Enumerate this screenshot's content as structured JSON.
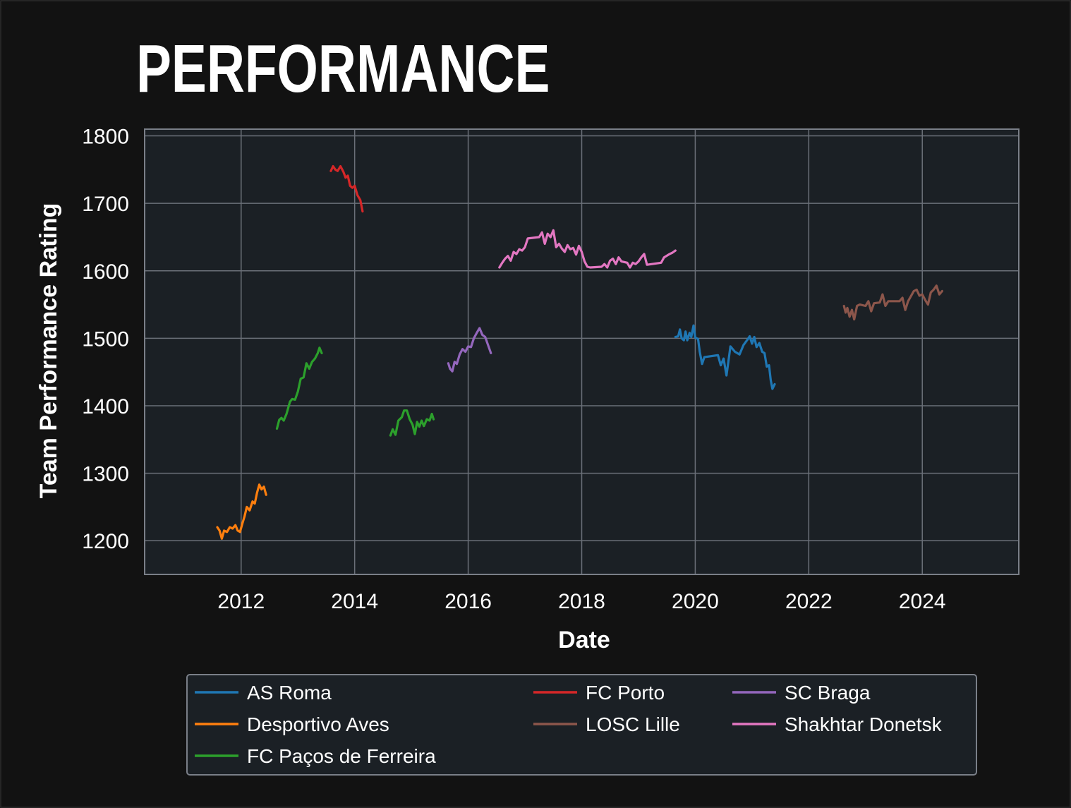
{
  "chart_data": {
    "type": "line",
    "title": "PERFORMANCE",
    "xlabel": "Date",
    "ylabel": "Team Performance Rating",
    "xlim": [
      2010.3,
      2025.7
    ],
    "ylim": [
      1150,
      1810
    ],
    "x_ticks": [
      2012,
      2014,
      2016,
      2018,
      2020,
      2022,
      2024
    ],
    "x_tick_labels": [
      "2012",
      "2014",
      "2016",
      "2018",
      "2020",
      "2022",
      "2024"
    ],
    "y_ticks": [
      1200,
      1300,
      1400,
      1500,
      1600,
      1700,
      1800
    ],
    "y_tick_labels": [
      "1200",
      "1300",
      "1400",
      "1500",
      "1600",
      "1700",
      "1800"
    ],
    "grid": true,
    "legend_position": "bottom",
    "colors": {
      "background": "#121212",
      "plot_background": "#1b2025",
      "grid": "#6b7079",
      "text": "#ffffff"
    },
    "series": [
      {
        "name": "AS Roma",
        "color": "#1f77b4",
        "points": [
          [
            2019.65,
            1502
          ],
          [
            2019.7,
            1503
          ],
          [
            2019.73,
            1513
          ],
          [
            2019.76,
            1500
          ],
          [
            2019.8,
            1497
          ],
          [
            2019.83,
            1510
          ],
          [
            2019.86,
            1497
          ],
          [
            2019.9,
            1508
          ],
          [
            2019.93,
            1502
          ],
          [
            2019.97,
            1519
          ],
          [
            2020.0,
            1501
          ],
          [
            2020.05,
            1499
          ],
          [
            2020.08,
            1480
          ],
          [
            2020.12,
            1462
          ],
          [
            2020.16,
            1472
          ],
          [
            2020.4,
            1475
          ],
          [
            2020.45,
            1460
          ],
          [
            2020.5,
            1470
          ],
          [
            2020.55,
            1445
          ],
          [
            2020.62,
            1488
          ],
          [
            2020.7,
            1480
          ],
          [
            2020.78,
            1476
          ],
          [
            2020.85,
            1490
          ],
          [
            2020.92,
            1498
          ],
          [
            2020.96,
            1503
          ],
          [
            2021.0,
            1492
          ],
          [
            2021.04,
            1502
          ],
          [
            2021.08,
            1487
          ],
          [
            2021.13,
            1493
          ],
          [
            2021.18,
            1480
          ],
          [
            2021.22,
            1478
          ],
          [
            2021.26,
            1458
          ],
          [
            2021.3,
            1460
          ],
          [
            2021.33,
            1438
          ],
          [
            2021.36,
            1425
          ],
          [
            2021.4,
            1432
          ]
        ]
      },
      {
        "name": "Desportivo Aves",
        "color": "#ff7f0e",
        "points": [
          [
            2011.58,
            1220
          ],
          [
            2011.62,
            1215
          ],
          [
            2011.66,
            1203
          ],
          [
            2011.7,
            1215
          ],
          [
            2011.75,
            1213
          ],
          [
            2011.8,
            1220
          ],
          [
            2011.85,
            1218
          ],
          [
            2011.9,
            1223
          ],
          [
            2011.94,
            1215
          ],
          [
            2011.98,
            1213
          ],
          [
            2012.02,
            1225
          ],
          [
            2012.06,
            1236
          ],
          [
            2012.1,
            1250
          ],
          [
            2012.15,
            1245
          ],
          [
            2012.2,
            1258
          ],
          [
            2012.24,
            1255
          ],
          [
            2012.28,
            1271
          ],
          [
            2012.32,
            1283
          ],
          [
            2012.36,
            1276
          ],
          [
            2012.4,
            1280
          ],
          [
            2012.44,
            1268
          ]
        ]
      },
      {
        "name": "FC Paços de Ferreira",
        "color": "#2ca02c",
        "points": [
          [
            2012.63,
            1366
          ],
          [
            2012.67,
            1379
          ],
          [
            2012.71,
            1382
          ],
          [
            2012.75,
            1378
          ],
          [
            2012.8,
            1388
          ],
          [
            2012.86,
            1406
          ],
          [
            2012.9,
            1410
          ],
          [
            2012.95,
            1409
          ],
          [
            2013.0,
            1421
          ],
          [
            2013.05,
            1440
          ],
          [
            2013.1,
            1442
          ],
          [
            2013.15,
            1463
          ],
          [
            2013.2,
            1455
          ],
          [
            2013.25,
            1465
          ],
          [
            2013.3,
            1470
          ],
          [
            2013.35,
            1478
          ],
          [
            2013.38,
            1486
          ],
          [
            2013.42,
            1478
          ]
        ],
        "segments": [
          [
            [
              2012.63,
              1366
            ],
            [
              2012.67,
              1379
            ],
            [
              2012.71,
              1382
            ],
            [
              2012.75,
              1378
            ],
            [
              2012.8,
              1388
            ],
            [
              2012.86,
              1406
            ],
            [
              2012.9,
              1410
            ],
            [
              2012.95,
              1409
            ],
            [
              2013.0,
              1421
            ],
            [
              2013.05,
              1440
            ],
            [
              2013.1,
              1442
            ],
            [
              2013.15,
              1463
            ],
            [
              2013.2,
              1455
            ],
            [
              2013.25,
              1465
            ],
            [
              2013.3,
              1470
            ],
            [
              2013.35,
              1478
            ],
            [
              2013.38,
              1486
            ],
            [
              2013.42,
              1478
            ]
          ],
          [
            [
              2014.63,
              1356
            ],
            [
              2014.67,
              1365
            ],
            [
              2014.72,
              1357
            ],
            [
              2014.77,
              1378
            ],
            [
              2014.83,
              1383
            ],
            [
              2014.87,
              1393
            ],
            [
              2014.92,
              1393
            ],
            [
              2014.97,
              1380
            ],
            [
              2015.02,
              1372
            ],
            [
              2015.06,
              1358
            ],
            [
              2015.1,
              1376
            ],
            [
              2015.14,
              1369
            ],
            [
              2015.18,
              1378
            ],
            [
              2015.22,
              1370
            ],
            [
              2015.27,
              1380
            ],
            [
              2015.32,
              1378
            ],
            [
              2015.36,
              1388
            ],
            [
              2015.39,
              1380
            ]
          ]
        ]
      },
      {
        "name": "FC Porto",
        "color": "#d62728",
        "points": [
          [
            2013.58,
            1748
          ],
          [
            2013.62,
            1755
          ],
          [
            2013.66,
            1750
          ],
          [
            2013.7,
            1748
          ],
          [
            2013.75,
            1755
          ],
          [
            2013.8,
            1747
          ],
          [
            2013.84,
            1738
          ],
          [
            2013.88,
            1741
          ],
          [
            2013.92,
            1726
          ],
          [
            2013.96,
            1723
          ],
          [
            2014.0,
            1726
          ],
          [
            2014.05,
            1712
          ],
          [
            2014.1,
            1705
          ],
          [
            2014.14,
            1688
          ]
        ]
      },
      {
        "name": "LOSC Lille",
        "color": "#8c564b",
        "points": [
          [
            2022.62,
            1548
          ],
          [
            2022.65,
            1538
          ],
          [
            2022.68,
            1545
          ],
          [
            2022.72,
            1532
          ],
          [
            2022.76,
            1542
          ],
          [
            2022.8,
            1528
          ],
          [
            2022.85,
            1548
          ],
          [
            2022.9,
            1550
          ],
          [
            2023.0,
            1548
          ],
          [
            2023.05,
            1555
          ],
          [
            2023.1,
            1540
          ],
          [
            2023.15,
            1552
          ],
          [
            2023.25,
            1553
          ],
          [
            2023.3,
            1565
          ],
          [
            2023.35,
            1548
          ],
          [
            2023.4,
            1555
          ],
          [
            2023.5,
            1555
          ],
          [
            2023.6,
            1555
          ],
          [
            2023.65,
            1560
          ],
          [
            2023.7,
            1542
          ],
          [
            2023.75,
            1555
          ],
          [
            2023.85,
            1570
          ],
          [
            2023.9,
            1572
          ],
          [
            2023.95,
            1563
          ],
          [
            2024.0,
            1565
          ],
          [
            2024.05,
            1557
          ],
          [
            2024.1,
            1550
          ],
          [
            2024.15,
            1568
          ],
          [
            2024.2,
            1572
          ],
          [
            2024.25,
            1578
          ],
          [
            2024.3,
            1565
          ],
          [
            2024.35,
            1570
          ]
        ]
      },
      {
        "name": "SC Braga",
        "color": "#9467bd",
        "points": [
          [
            2015.65,
            1463
          ],
          [
            2015.68,
            1455
          ],
          [
            2015.72,
            1451
          ],
          [
            2015.76,
            1465
          ],
          [
            2015.8,
            1462
          ],
          [
            2015.85,
            1476
          ],
          [
            2015.9,
            1484
          ],
          [
            2015.95,
            1480
          ],
          [
            2016.0,
            1488
          ],
          [
            2016.05,
            1487
          ],
          [
            2016.1,
            1500
          ],
          [
            2016.15,
            1508
          ],
          [
            2016.2,
            1515
          ],
          [
            2016.25,
            1505
          ],
          [
            2016.3,
            1502
          ],
          [
            2016.35,
            1490
          ],
          [
            2016.4,
            1478
          ]
        ]
      },
      {
        "name": "Shakhtar Donetsk",
        "color": "#e377c2",
        "points": [
          [
            2016.55,
            1605
          ],
          [
            2016.6,
            1612
          ],
          [
            2016.65,
            1618
          ],
          [
            2016.7,
            1622
          ],
          [
            2016.75,
            1615
          ],
          [
            2016.8,
            1628
          ],
          [
            2016.85,
            1625
          ],
          [
            2016.9,
            1632
          ],
          [
            2016.95,
            1630
          ],
          [
            2017.0,
            1635
          ],
          [
            2017.05,
            1648
          ],
          [
            2017.25,
            1650
          ],
          [
            2017.3,
            1657
          ],
          [
            2017.35,
            1640
          ],
          [
            2017.4,
            1655
          ],
          [
            2017.45,
            1650
          ],
          [
            2017.5,
            1660
          ],
          [
            2017.55,
            1635
          ],
          [
            2017.6,
            1640
          ],
          [
            2017.65,
            1633
          ],
          [
            2017.7,
            1628
          ],
          [
            2017.75,
            1638
          ],
          [
            2017.8,
            1632
          ],
          [
            2017.85,
            1634
          ],
          [
            2017.9,
            1624
          ],
          [
            2017.95,
            1637
          ],
          [
            2018.0,
            1628
          ],
          [
            2018.05,
            1614
          ],
          [
            2018.1,
            1606
          ],
          [
            2018.15,
            1605
          ],
          [
            2018.35,
            1606
          ],
          [
            2018.4,
            1610
          ],
          [
            2018.45,
            1605
          ],
          [
            2018.5,
            1615
          ],
          [
            2018.55,
            1618
          ],
          [
            2018.6,
            1610
          ],
          [
            2018.65,
            1620
          ],
          [
            2018.7,
            1614
          ],
          [
            2018.8,
            1612
          ],
          [
            2018.85,
            1605
          ],
          [
            2018.9,
            1612
          ],
          [
            2018.95,
            1610
          ],
          [
            2019.0,
            1614
          ],
          [
            2019.05,
            1620
          ],
          [
            2019.1,
            1625
          ],
          [
            2019.15,
            1609
          ],
          [
            2019.4,
            1612
          ],
          [
            2019.45,
            1620
          ],
          [
            2019.55,
            1625
          ],
          [
            2019.6,
            1627
          ],
          [
            2019.65,
            1630
          ]
        ]
      }
    ]
  }
}
